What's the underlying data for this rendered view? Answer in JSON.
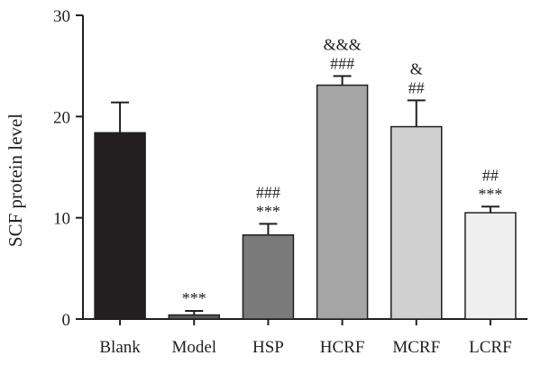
{
  "chart_data": {
    "type": "bar",
    "ylabel": "SCF protein level",
    "xlabel": "",
    "title": "",
    "ylim": [
      0,
      30
    ],
    "yticks": [
      0,
      10,
      20,
      30
    ],
    "categories": [
      "Blank",
      "Model",
      "HSP",
      "HCRF",
      "MCRF",
      "LCRF"
    ],
    "values": [
      18.4,
      0.4,
      8.3,
      23.1,
      19.0,
      10.5
    ],
    "errors": [
      3.0,
      0.4,
      1.1,
      0.9,
      2.6,
      0.6
    ],
    "colors": [
      "#231f20",
      "#58595b",
      "#7a7a7a",
      "#a5a5a5",
      "#d0d0d0",
      "#efefef"
    ],
    "annotations": [
      [],
      [
        "***"
      ],
      [
        "***",
        "###"
      ],
      [
        "###",
        "&&&"
      ],
      [
        "##",
        "&"
      ],
      [
        "***",
        "##"
      ]
    ],
    "grid": false,
    "legend": "none"
  }
}
